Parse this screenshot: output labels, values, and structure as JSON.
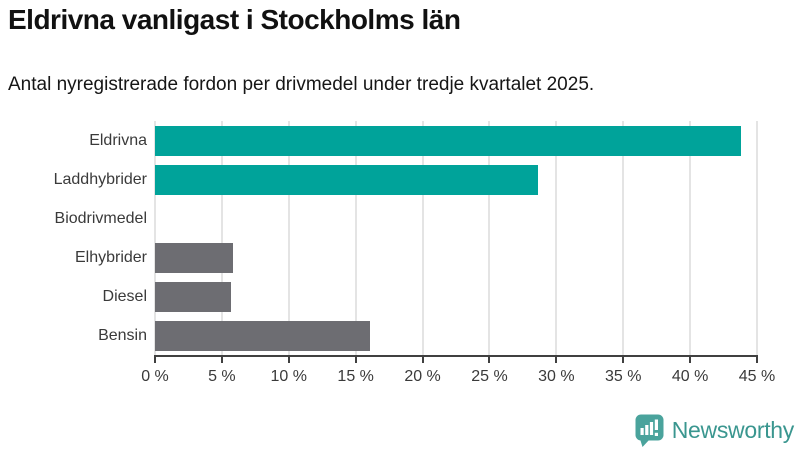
{
  "title": "Eldrivna vanligast i Stockholms län",
  "subtitle": "Antal nyregistrerade fordon per drivmedel under tredje kvartalet 2025.",
  "chart_data": {
    "type": "bar",
    "orientation": "horizontal",
    "title": "Eldrivna vanligast i Stockholms län",
    "subtitle": "Antal nyregistrerade fordon per drivmedel under tredje kvartalet 2025.",
    "categories": [
      "Eldrivna",
      "Laddhybrider",
      "Biodrivmedel",
      "Elhybrider",
      "Diesel",
      "Bensin"
    ],
    "values": [
      43.8,
      28.6,
      0,
      5.8,
      5.7,
      16.1
    ],
    "unit": "%",
    "xlim": [
      0,
      45
    ],
    "tick_values": [
      0,
      5,
      10,
      15,
      20,
      25,
      30,
      35,
      40,
      45
    ],
    "tick_labels": [
      "0 %",
      "5 %",
      "10 %",
      "15 %",
      "20 %",
      "25 %",
      "30 %",
      "35 %",
      "40 %",
      "45 %"
    ],
    "bar_colors": [
      "#00a39a",
      "#00a39a",
      "#6d6d72",
      "#6d6d72",
      "#6d6d72",
      "#6d6d72"
    ],
    "grid": true,
    "legend": "none",
    "xlabel": "",
    "ylabel": ""
  },
  "colors": {
    "accent_teal": "#00a39a",
    "bar_gray": "#6d6d72",
    "grid": "#e4e4e4",
    "axis": "#404040",
    "text": "#3a3a3a",
    "logo_badge": "#4aa39c",
    "logo_text": "#3a968f"
  },
  "branding": {
    "logo_text": "Newsworthy",
    "logo_icon": "bar-chart-speech-bubble-icon"
  }
}
